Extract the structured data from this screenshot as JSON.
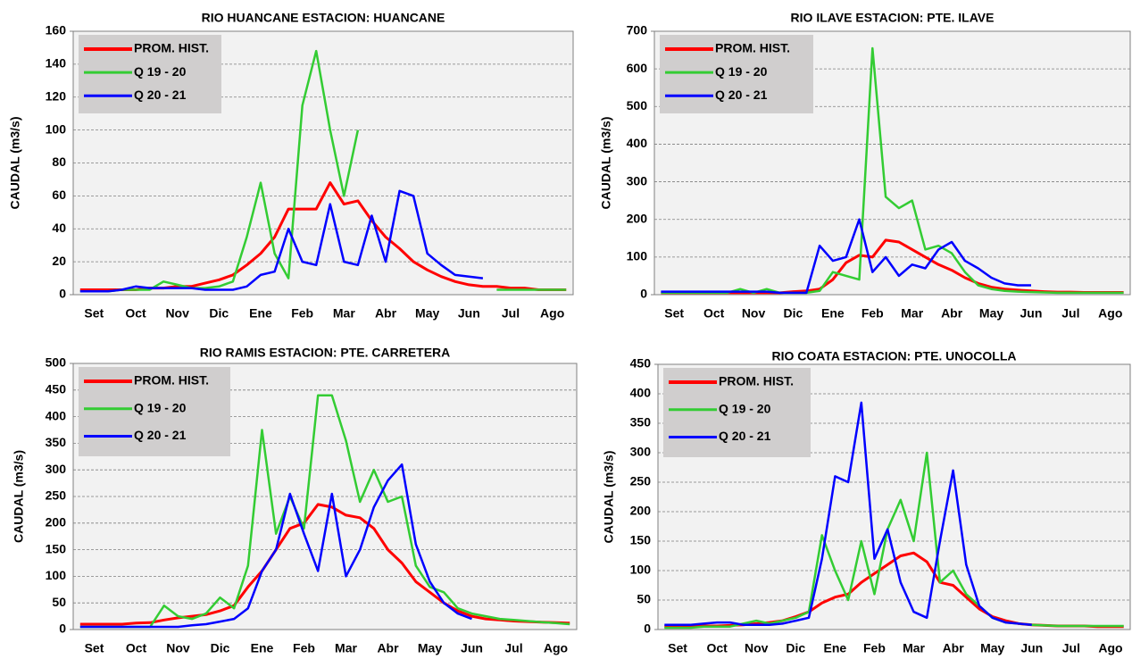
{
  "chart_data": [
    {
      "type": "line",
      "title": "RIO HUANCANE ESTACION: HUANCANE",
      "y_label": "CAUDAL (m3/s)",
      "categories": [
        "Set",
        null,
        null,
        "Oct",
        null,
        null,
        "Nov",
        null,
        null,
        "Dic",
        null,
        null,
        "Ene",
        null,
        null,
        "Feb",
        null,
        null,
        "Mar",
        null,
        null,
        "Abr",
        null,
        null,
        "May",
        null,
        null,
        "Jun",
        null,
        null,
        "Jul",
        null,
        null,
        "Ago",
        null,
        null
      ],
      "ylim": [
        0,
        160
      ],
      "yticks": [
        0,
        20,
        40,
        60,
        80,
        100,
        120,
        140,
        160
      ],
      "grid": true,
      "legend": "upper-left",
      "series": [
        {
          "name": "PROM. HIST.",
          "color": "#ff0000",
          "values": [
            3,
            3,
            3,
            3,
            3,
            4,
            4,
            5,
            5,
            7,
            9,
            12,
            18,
            25,
            35,
            52,
            52,
            52,
            68,
            55,
            57,
            45,
            35,
            28,
            20,
            15,
            11,
            8,
            6,
            5,
            5,
            4,
            4,
            3,
            3,
            3
          ]
        },
        {
          "name": "Q 19 - 20",
          "color": "#33cc33",
          "values": [
            2,
            2,
            2,
            3,
            3,
            3,
            8,
            6,
            4,
            4,
            5,
            8,
            35,
            68,
            25,
            10,
            115,
            148,
            100,
            60,
            100,
            null,
            null,
            null,
            null,
            null,
            null,
            null,
            null,
            null,
            3,
            3,
            3,
            3,
            3,
            3
          ]
        },
        {
          "name": "Q 20 - 21",
          "color": "#0000ff",
          "values": [
            2,
            2,
            2,
            3,
            5,
            4,
            4,
            4,
            4,
            3,
            3,
            3,
            5,
            12,
            14,
            40,
            20,
            18,
            55,
            20,
            18,
            48,
            20,
            63,
            60,
            25,
            18,
            12,
            11,
            10,
            null,
            null,
            null,
            null,
            null,
            null
          ]
        }
      ]
    },
    {
      "type": "line",
      "title": "RIO ILAVE ESTACION: PTE. ILAVE",
      "y_label": "CAUDAL (m3/s)",
      "categories": [
        "Set",
        null,
        null,
        "Oct",
        null,
        null,
        "Nov",
        null,
        null,
        "Dic",
        null,
        null,
        "Ene",
        null,
        null,
        "Feb",
        null,
        null,
        "Mar",
        null,
        null,
        "Abr",
        null,
        null,
        "May",
        null,
        null,
        "Jun",
        null,
        null,
        "Jul",
        null,
        null,
        "Ago",
        null,
        null
      ],
      "ylim": [
        0,
        700
      ],
      "yticks": [
        0,
        100,
        200,
        300,
        400,
        500,
        600,
        700
      ],
      "grid": true,
      "legend": "upper-left",
      "series": [
        {
          "name": "PROM. HIST.",
          "color": "#ff0000",
          "values": [
            5,
            5,
            5,
            5,
            5,
            5,
            5,
            5,
            5,
            5,
            8,
            10,
            15,
            40,
            85,
            105,
            100,
            145,
            140,
            120,
            100,
            80,
            65,
            45,
            30,
            20,
            15,
            12,
            10,
            8,
            7,
            7,
            6,
            6,
            6,
            6
          ]
        },
        {
          "name": "Q 19 - 20",
          "color": "#33cc33",
          "values": [
            5,
            5,
            5,
            5,
            5,
            5,
            15,
            5,
            15,
            5,
            5,
            5,
            10,
            60,
            50,
            40,
            655,
            260,
            230,
            250,
            120,
            130,
            110,
            60,
            25,
            15,
            10,
            8,
            7,
            6,
            5,
            5,
            5,
            5,
            5,
            5
          ]
        },
        {
          "name": "Q 20 - 21",
          "color": "#0000ff",
          "values": [
            8,
            8,
            8,
            8,
            8,
            8,
            8,
            8,
            8,
            5,
            5,
            5,
            130,
            90,
            100,
            200,
            60,
            100,
            50,
            80,
            70,
            120,
            140,
            90,
            70,
            45,
            30,
            25,
            25,
            null,
            null,
            null,
            null,
            null,
            null,
            null
          ]
        }
      ]
    },
    {
      "type": "line",
      "title": "RIO RAMIS ESTACION: PTE. CARRETERA",
      "y_label": "CAUDAL (m3/s)",
      "categories": [
        "Set",
        null,
        null,
        "Oct",
        null,
        null,
        "Nov",
        null,
        null,
        "Dic",
        null,
        null,
        "Ene",
        null,
        null,
        "Feb",
        null,
        null,
        "Mar",
        null,
        null,
        "Abr",
        null,
        null,
        "May",
        null,
        null,
        "Jun",
        null,
        null,
        "Jul",
        null,
        null,
        "Ago",
        null,
        null
      ],
      "ylim": [
        0,
        500
      ],
      "yticks": [
        0,
        50,
        100,
        150,
        200,
        250,
        300,
        350,
        400,
        450,
        500
      ],
      "grid": true,
      "legend": "upper-left",
      "series": [
        {
          "name": "PROM. HIST.",
          "color": "#ff0000",
          "values": [
            10,
            10,
            10,
            10,
            12,
            13,
            18,
            22,
            25,
            28,
            35,
            45,
            80,
            110,
            150,
            190,
            200,
            235,
            230,
            215,
            210,
            190,
            150,
            125,
            90,
            70,
            50,
            35,
            25,
            20,
            18,
            16,
            15,
            14,
            13,
            12
          ]
        },
        {
          "name": "Q 19 - 20",
          "color": "#33cc33",
          "values": [
            5,
            5,
            5,
            5,
            5,
            5,
            45,
            25,
            20,
            30,
            60,
            40,
            120,
            375,
            180,
            250,
            190,
            440,
            440,
            355,
            240,
            300,
            240,
            250,
            120,
            80,
            70,
            40,
            30,
            25,
            20,
            18,
            16,
            14,
            12,
            10
          ]
        },
        {
          "name": "Q 20 - 21",
          "color": "#0000ff",
          "values": [
            5,
            5,
            5,
            5,
            5,
            5,
            5,
            5,
            8,
            10,
            15,
            20,
            40,
            110,
            150,
            255,
            180,
            110,
            255,
            100,
            150,
            230,
            280,
            310,
            160,
            90,
            50,
            30,
            20,
            null,
            null,
            null,
            null,
            null,
            null,
            null
          ]
        }
      ]
    },
    {
      "type": "line",
      "title": "RIO COATA ESTACION: PTE. UNOCOLLA",
      "y_label": "CAUDAL (m3/s)",
      "categories": [
        "Set",
        null,
        null,
        "Oct",
        null,
        null,
        "Nov",
        null,
        null,
        "Dic",
        null,
        null,
        "Ene",
        null,
        null,
        "Feb",
        null,
        null,
        "Mar",
        null,
        null,
        "Abr",
        null,
        null,
        "May",
        null,
        null,
        "Jun",
        null,
        null,
        "Jul",
        null,
        null,
        "Ago",
        null,
        null
      ],
      "ylim": [
        0,
        450
      ],
      "yticks": [
        0,
        50,
        100,
        150,
        200,
        250,
        300,
        350,
        400,
        450
      ],
      "grid": true,
      "legend": "upper-left",
      "series": [
        {
          "name": "PROM. HIST.",
          "color": "#ff0000",
          "values": [
            5,
            5,
            5,
            6,
            6,
            7,
            8,
            10,
            12,
            15,
            22,
            30,
            45,
            55,
            60,
            80,
            95,
            110,
            125,
            130,
            115,
            80,
            75,
            55,
            35,
            22,
            15,
            10,
            8,
            7,
            6,
            6,
            6,
            5,
            5,
            5
          ]
        },
        {
          "name": "Q 19 - 20",
          "color": "#33cc33",
          "values": [
            3,
            3,
            3,
            5,
            5,
            5,
            10,
            15,
            10,
            15,
            20,
            30,
            160,
            100,
            50,
            150,
            60,
            170,
            220,
            150,
            300,
            80,
            100,
            60,
            40,
            20,
            12,
            10,
            8,
            7,
            6,
            6,
            6,
            6,
            6,
            6
          ]
        },
        {
          "name": "Q 20 - 21",
          "color": "#0000ff",
          "values": [
            8,
            8,
            8,
            10,
            12,
            12,
            8,
            8,
            8,
            10,
            15,
            20,
            120,
            260,
            250,
            385,
            120,
            170,
            80,
            30,
            20,
            150,
            270,
            110,
            40,
            20,
            12,
            10,
            8,
            null,
            null,
            null,
            null,
            null,
            null,
            null
          ]
        }
      ]
    }
  ]
}
